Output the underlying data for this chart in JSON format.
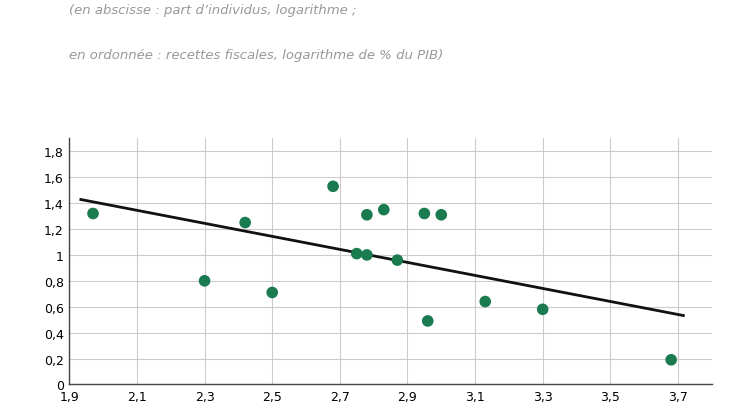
{
  "scatter_x": [
    1.97,
    2.3,
    2.42,
    2.5,
    2.68,
    2.75,
    2.78,
    2.78,
    2.83,
    2.87,
    2.95,
    3.0,
    3.13,
    2.96,
    3.3,
    3.68
  ],
  "scatter_y": [
    1.32,
    0.8,
    1.25,
    0.71,
    1.53,
    1.01,
    1.0,
    1.31,
    1.35,
    0.96,
    1.32,
    1.31,
    0.64,
    0.49,
    0.58,
    0.19
  ],
  "line_x": [
    1.93,
    3.72
  ],
  "line_y": [
    1.43,
    0.53
  ],
  "dot_color": "#1a7a50",
  "line_color": "#111111",
  "subtitle_line1": "(en abscisse : part d’individus, logarithme ;",
  "subtitle_line2": "en ordonnée : recettes fiscales, logarithme de % du PIB)",
  "xlim": [
    1.9,
    3.8
  ],
  "ylim": [
    0,
    1.9
  ],
  "xticks": [
    1.9,
    2.1,
    2.3,
    2.5,
    2.7,
    2.9,
    3.1,
    3.3,
    3.5,
    3.7
  ],
  "yticks": [
    0,
    0.2,
    0.4,
    0.6,
    0.8,
    1.0,
    1.2,
    1.4,
    1.6,
    1.8
  ],
  "xtick_labels": [
    "1,9",
    "2,1",
    "2,3",
    "2,5",
    "2,7",
    "2,9",
    "3,1",
    "3,3",
    "3,5",
    "3,7"
  ],
  "ytick_labels": [
    "0",
    "0,2",
    "0,4",
    "0,6",
    "0,8",
    "1",
    "1,2",
    "1,4",
    "1,6",
    "1,8"
  ],
  "background_color": "#ffffff",
  "grid_color": "#cccccc",
  "subtitle_color": "#999999",
  "subtitle_fontsize": 9.5
}
